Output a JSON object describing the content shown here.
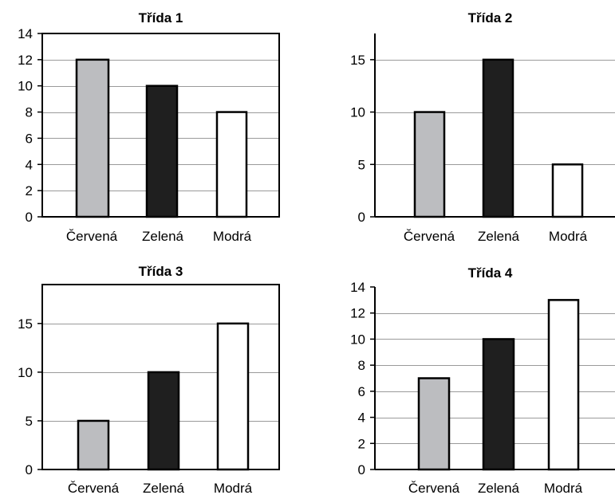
{
  "chart_data": [
    {
      "type": "bar",
      "title": "Třída 1",
      "categories": [
        "Červená",
        "Zelená",
        "Modrá"
      ],
      "values": [
        12,
        10,
        8
      ],
      "ylim": [
        0,
        14
      ],
      "yticks": [
        0,
        2,
        4,
        6,
        8,
        10,
        12,
        14
      ],
      "grid": true,
      "box": "full"
    },
    {
      "type": "bar",
      "title": "Třída 2",
      "categories": [
        "Červená",
        "Zelená",
        "Modrá"
      ],
      "values": [
        10,
        15,
        5
      ],
      "ylim": [
        0,
        17.5
      ],
      "yticks": [
        0,
        5,
        10,
        15
      ],
      "grid": true,
      "box": "left-bottom"
    },
    {
      "type": "bar",
      "title": "Třída 3",
      "categories": [
        "Červená",
        "Zelená",
        "Modrá"
      ],
      "values": [
        5,
        10,
        15
      ],
      "ylim": [
        0,
        19
      ],
      "yticks": [
        0,
        5,
        10,
        15
      ],
      "grid": true,
      "box": "full"
    },
    {
      "type": "bar",
      "title": "Třída 4",
      "categories": [
        "Červená",
        "Zelená",
        "Modrá"
      ],
      "values": [
        7,
        10,
        13
      ],
      "ylim": [
        0,
        14
      ],
      "yticks": [
        0,
        2,
        4,
        6,
        8,
        10,
        12,
        14
      ],
      "grid": true,
      "box": "left-bottom"
    }
  ],
  "bar_colors": [
    "#bcbdc0",
    "#1f1f1f",
    "#ffffff"
  ],
  "bar_stroke": "#000000"
}
